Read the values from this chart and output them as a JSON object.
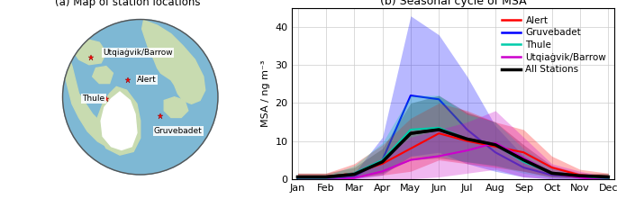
{
  "title_left": "(a) Map of station locations",
  "title_right": "(b) Seasonal cycle of MSA",
  "ylabel": "MSA / ng m⁻³",
  "months": [
    "Jan",
    "Feb",
    "Mar",
    "Apr",
    "May",
    "Jun",
    "Jul",
    "Aug",
    "Sep",
    "Oct",
    "Nov",
    "Dec"
  ],
  "ylim": [
    0,
    45
  ],
  "yticks": [
    0,
    10,
    20,
    30,
    40
  ],
  "alert_mean": [
    0.5,
    0.5,
    1.5,
    4.0,
    8.0,
    12.0,
    10.0,
    8.5,
    7.0,
    3.0,
    1.0,
    0.5
  ],
  "alert_low": [
    0.0,
    0.0,
    0.3,
    1.0,
    2.0,
    5.0,
    4.0,
    3.0,
    2.0,
    0.5,
    0.2,
    0.0
  ],
  "alert_high": [
    1.5,
    1.5,
    4.0,
    9.0,
    16.0,
    20.0,
    18.0,
    15.0,
    13.0,
    6.0,
    2.5,
    1.5
  ],
  "alert_color": "#ff0000",
  "gruve_mean": [
    0.2,
    0.2,
    0.5,
    5.0,
    22.0,
    21.0,
    13.0,
    7.0,
    3.0,
    1.0,
    0.5,
    0.2
  ],
  "gruve_low": [
    0.0,
    0.0,
    0.0,
    1.0,
    6.0,
    7.0,
    4.0,
    2.0,
    0.5,
    0.0,
    0.0,
    0.0
  ],
  "gruve_high": [
    0.5,
    0.5,
    1.5,
    11.0,
    43.0,
    38.0,
    27.0,
    14.0,
    6.0,
    2.0,
    1.0,
    0.5
  ],
  "gruve_color": "#0000ff",
  "thule_mean": [
    0.3,
    0.3,
    1.5,
    5.0,
    13.0,
    13.5,
    10.5,
    9.0,
    4.5,
    1.5,
    0.5,
    0.3
  ],
  "thule_low": [
    0.0,
    0.0,
    0.5,
    2.0,
    6.0,
    6.0,
    4.5,
    3.5,
    1.5,
    0.3,
    0.1,
    0.0
  ],
  "thule_high": [
    0.8,
    0.8,
    3.5,
    9.5,
    22.0,
    22.0,
    17.0,
    15.0,
    8.0,
    3.0,
    1.2,
    0.8
  ],
  "thule_color": "#00ccaa",
  "barrow_mean": [
    -0.5,
    -0.5,
    0.2,
    2.0,
    5.0,
    6.0,
    7.5,
    9.5,
    5.5,
    1.5,
    0.3,
    -0.5
  ],
  "barrow_low": [
    -2.0,
    -2.0,
    -1.0,
    -0.5,
    -0.5,
    0.5,
    1.5,
    2.5,
    0.5,
    -0.5,
    -1.0,
    -2.0
  ],
  "barrow_high": [
    0.5,
    0.5,
    2.0,
    5.5,
    11.0,
    13.0,
    15.0,
    18.0,
    11.0,
    4.0,
    2.0,
    0.5
  ],
  "barrow_color": "#cc00cc",
  "all_mean": [
    0.5,
    0.5,
    1.2,
    4.5,
    12.0,
    13.0,
    10.5,
    9.0,
    5.0,
    1.5,
    0.8,
    0.5
  ],
  "all_low": [
    0.0,
    0.0,
    0.3,
    1.5,
    5.0,
    5.5,
    4.5,
    3.5,
    2.0,
    0.5,
    0.2,
    0.0
  ],
  "all_high": [
    1.5,
    1.5,
    3.0,
    8.0,
    20.0,
    22.0,
    17.5,
    15.0,
    9.0,
    3.5,
    1.5,
    1.5
  ],
  "all_color": "#000000",
  "map_ocean_color": "#7eb8d4",
  "map_land_color": "#c8dbb0",
  "map_ice_color": "#ffffff",
  "map_border_color": "#555555"
}
